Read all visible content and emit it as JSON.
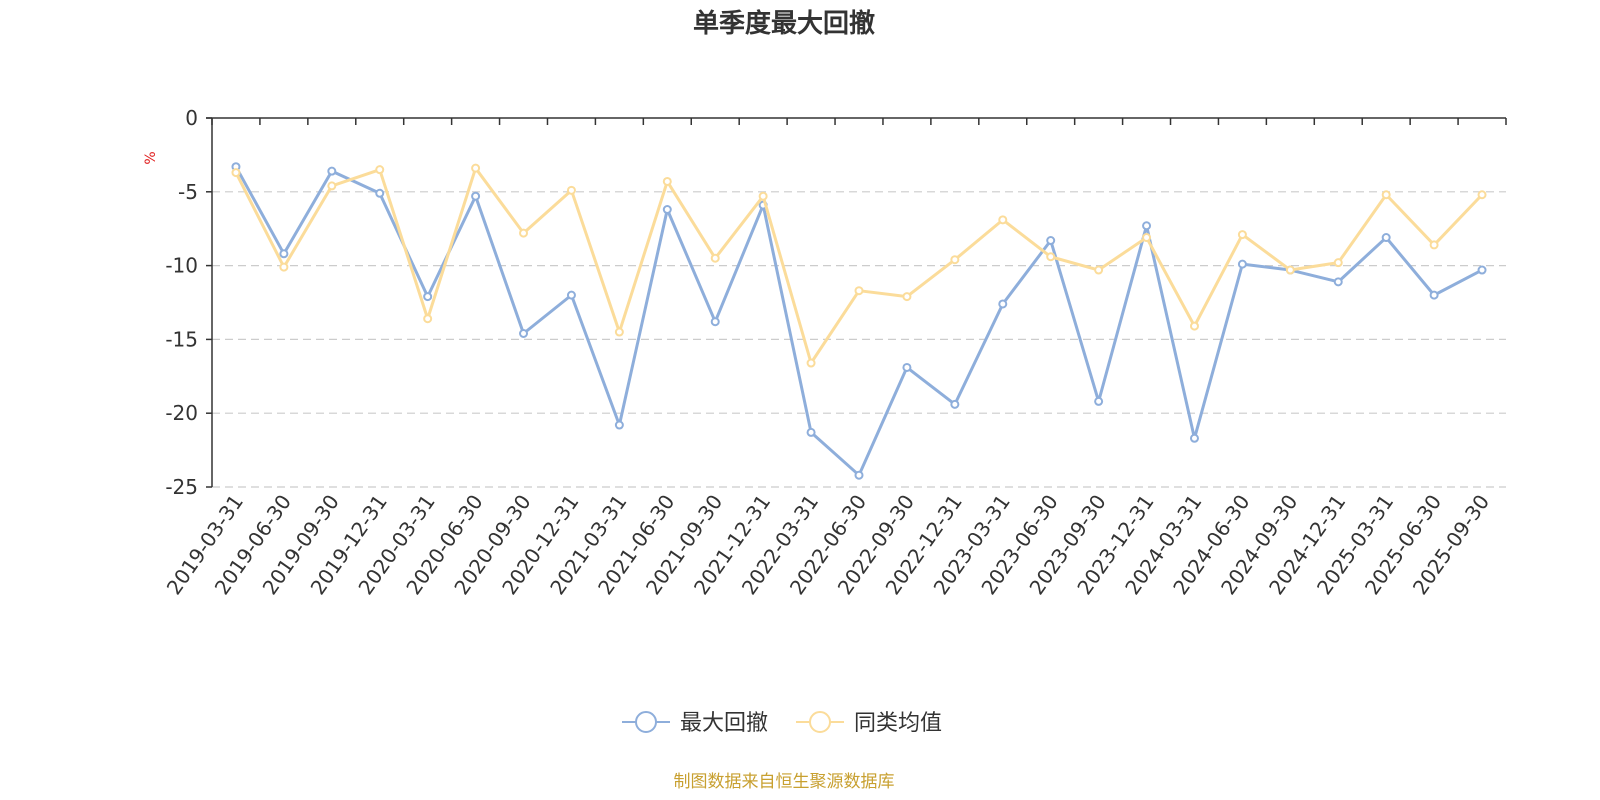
{
  "chart_data": {
    "type": "line",
    "title": "单季度最大回撤",
    "ylabel": "%",
    "xlabel": "",
    "ylim": [
      -25,
      0
    ],
    "yticks": [
      0,
      -5,
      -10,
      -15,
      -20,
      -25
    ],
    "categories": [
      "2019-03-31",
      "2019-06-30",
      "2019-09-30",
      "2019-12-31",
      "2020-03-31",
      "2020-06-30",
      "2020-09-30",
      "2020-12-31",
      "2021-03-31",
      "2021-06-30",
      "2021-09-30",
      "2021-12-31",
      "2022-03-31",
      "2022-06-30",
      "2022-09-30",
      "2022-12-31",
      "2023-03-31",
      "2023-06-30",
      "2023-09-30",
      "2023-12-31",
      "2024-03-31",
      "2024-06-30",
      "2024-09-30",
      "2024-12-31",
      "2025-03-31",
      "2025-06-30",
      "2025-09-30"
    ],
    "series": [
      {
        "name": "最大回撤",
        "color": "#8eaedb",
        "values": [
          -3.3,
          -9.2,
          -3.6,
          -5.1,
          -12.1,
          -5.3,
          -14.6,
          -12.0,
          -20.8,
          -6.2,
          -13.8,
          -5.9,
          -21.3,
          -24.2,
          -16.9,
          -19.4,
          -12.6,
          -8.3,
          -19.2,
          -7.3,
          -21.7,
          -9.9,
          -10.3,
          -11.1,
          -8.1,
          -12.0,
          -10.3
        ]
      },
      {
        "name": "同类均值",
        "color": "#fbdc9a",
        "values": [
          -3.7,
          -10.1,
          -4.6,
          -3.5,
          -13.6,
          -3.4,
          -7.8,
          -4.9,
          -14.5,
          -4.3,
          -9.5,
          -5.3,
          -16.6,
          -11.7,
          -12.1,
          -9.6,
          -6.9,
          -9.4,
          -10.3,
          -8.1,
          -14.1,
          -7.9,
          -10.3,
          -9.8,
          -5.2,
          -8.6,
          -5.2
        ]
      }
    ],
    "grid": true,
    "legend_position": "bottom-center"
  },
  "source": "制图数据来自恒生聚源数据库"
}
